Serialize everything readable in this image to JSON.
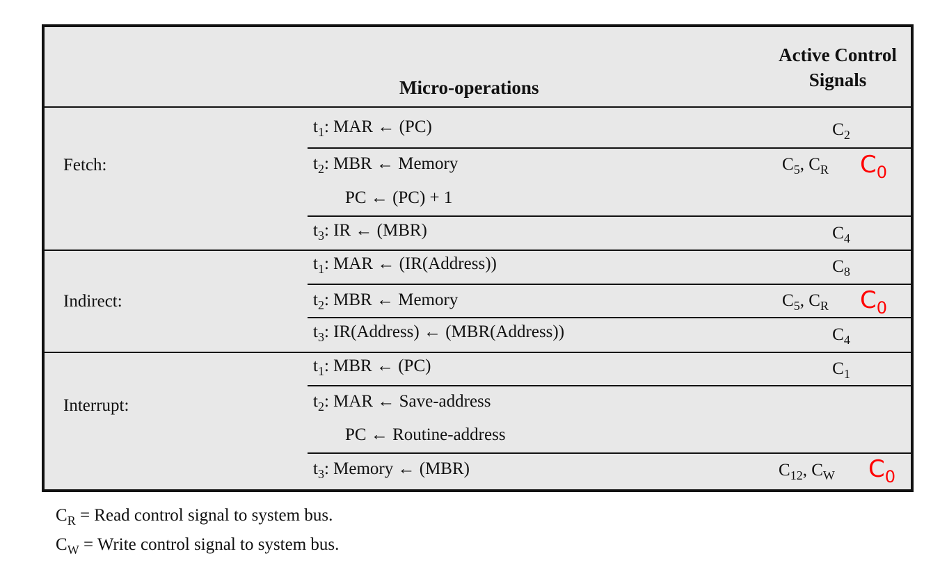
{
  "header": {
    "micro_operations": "Micro-operations",
    "signals_line1": "Active Control",
    "signals_line2": "Signals"
  },
  "groups": {
    "fetch": "Fetch:",
    "indirect": "Indirect:",
    "interrupt": "Interrupt:"
  },
  "rows": {
    "fetch_t1": {
      "t": "t",
      "sub": "1",
      "op": ": MAR ← (PC)",
      "sig": "C",
      "sig_sub": "2"
    },
    "fetch_t2": {
      "t": "t",
      "sub": "2",
      "op": ": MBR ← Memory",
      "sig1": "C",
      "sig1_sub": "5",
      "sep": ", ",
      "sig2": "C",
      "sig2_sub": "R",
      "extra": "C",
      "extra_sub": "0"
    },
    "fetch_t2b": {
      "op": "PC ← (PC) + 1"
    },
    "fetch_t3": {
      "t": "t",
      "sub": "3",
      "op": ": IR ← (MBR)",
      "sig": "C",
      "sig_sub": "4"
    },
    "indirect_t1": {
      "t": "t",
      "sub": "1",
      "op": ": MAR ← (IR(Address))",
      "sig": "C",
      "sig_sub": "8"
    },
    "indirect_t2": {
      "t": "t",
      "sub": "2",
      "op": ": MBR ← Memory",
      "sig1": "C",
      "sig1_sub": "5",
      "sep": ", ",
      "sig2": "C",
      "sig2_sub": "R",
      "extra": "C",
      "extra_sub": "0"
    },
    "indirect_t3": {
      "t": "t",
      "sub": "3",
      "op": ": IR(Address) ← (MBR(Address))",
      "sig": "C",
      "sig_sub": "4"
    },
    "interrupt_t1": {
      "t": "t",
      "sub": "1",
      "op": ": MBR ← (PC)",
      "sig": "C",
      "sig_sub": "1"
    },
    "interrupt_t2": {
      "t": "t",
      "sub": "2",
      "op": ": MAR ← Save-address"
    },
    "interrupt_t2b": {
      "op": "PC ← Routine-address"
    },
    "interrupt_t3": {
      "t": "t",
      "sub": "3",
      "op": ": Memory ← (MBR)",
      "sig1": "C",
      "sig1_sub": "12",
      "sep": ", ",
      "sig2": "C",
      "sig2_sub": "W",
      "extra": "C",
      "extra_sub": "0"
    }
  },
  "notes": {
    "cr": {
      "c": "C",
      "sub": "R",
      "text": " = Read control signal to system bus."
    },
    "cw": {
      "c": "C",
      "sub": "W",
      "text": " = Write control signal to system bus."
    }
  },
  "colors": {
    "annotation": "#ff0000",
    "table_bg": "#e8e8e8",
    "rule": "#111111"
  }
}
